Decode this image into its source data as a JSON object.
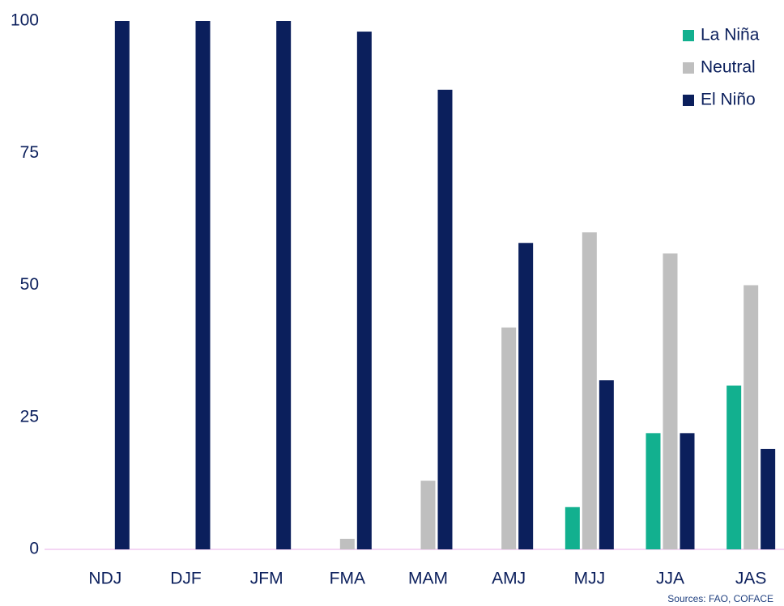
{
  "chart_data": {
    "type": "bar",
    "categories": [
      "NDJ",
      "DJF",
      "JFM",
      "FMA",
      "MAM",
      "AMJ",
      "MJJ",
      "JJA",
      "JAS"
    ],
    "series": [
      {
        "name": "La Niña",
        "color": "#12b08f",
        "values": [
          0,
          0,
          0,
          0,
          0,
          0,
          8,
          22,
          31
        ]
      },
      {
        "name": "Neutral",
        "color": "#bfbfbf",
        "values": [
          0,
          0,
          0,
          2,
          13,
          42,
          60,
          56,
          50
        ]
      },
      {
        "name": "El Niño",
        "color": "#0b1f5c",
        "values": [
          100,
          100,
          100,
          98,
          87,
          58,
          32,
          22,
          19
        ]
      }
    ],
    "ylim": [
      0,
      100
    ],
    "yticks": [
      0,
      25,
      50,
      75,
      100
    ],
    "grid": false,
    "legend": "upper right",
    "source": "Sources: FAO, COFACE"
  }
}
